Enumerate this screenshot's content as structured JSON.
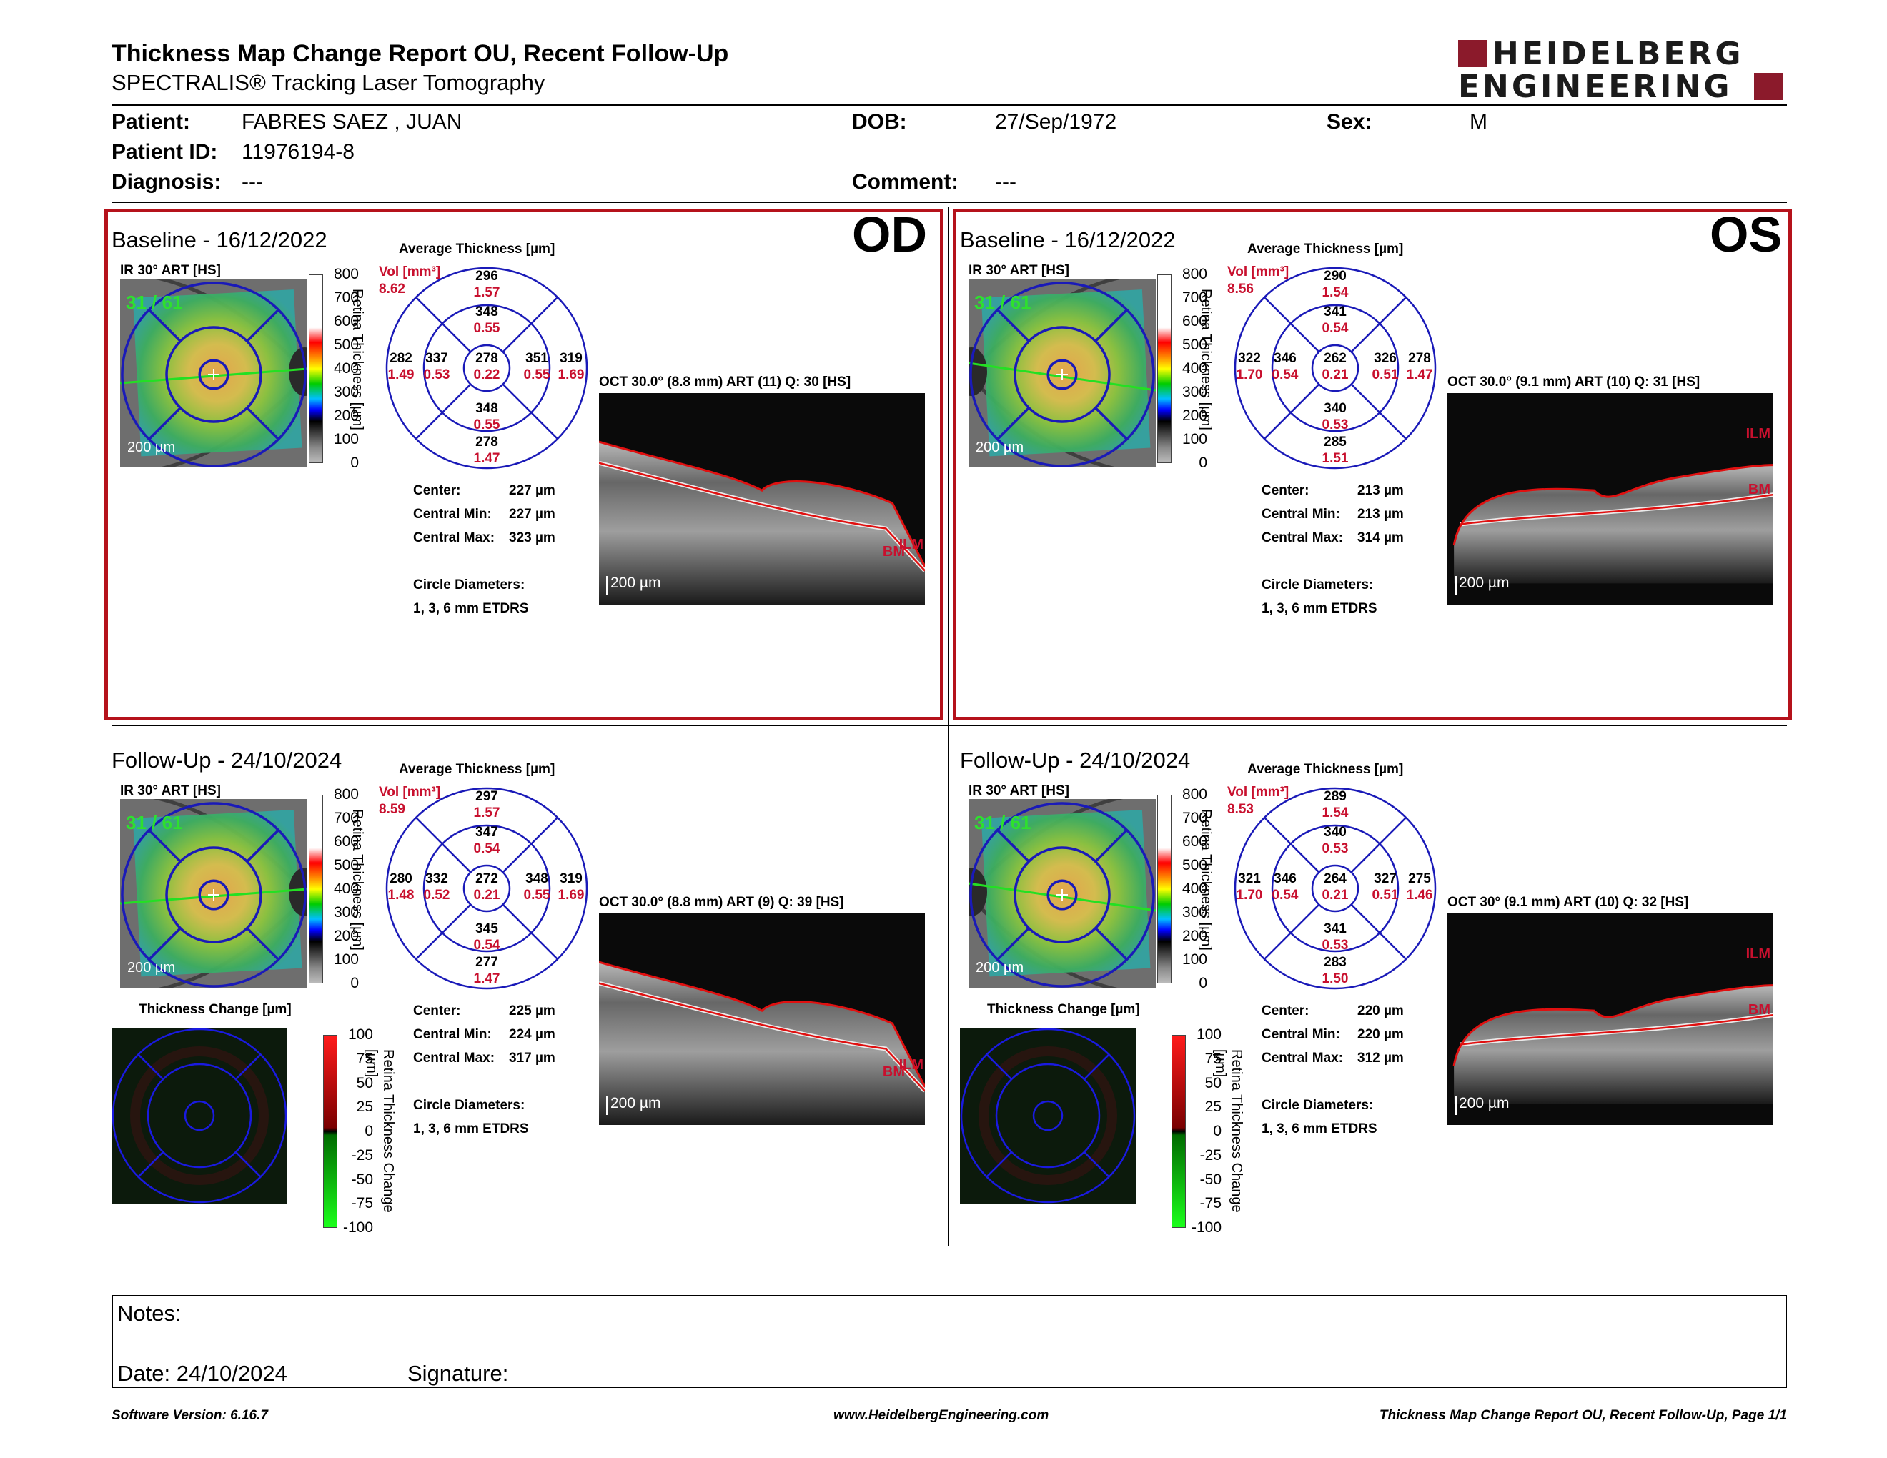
{
  "header": {
    "title": "Thickness Map Change Report OU, Recent Follow-Up",
    "subtitle": "SPECTRALIS® Tracking Laser Tomography",
    "logo_line1": "HEIDELBERG",
    "logo_line2": "ENGINEERING"
  },
  "patient": {
    "patient_label": "Patient:",
    "patient_value": "FABRES SAEZ , JUAN",
    "id_label": "Patient ID:",
    "id_value": "11976194-8",
    "diagnosis_label": "Diagnosis:",
    "diagnosis_value": "---",
    "dob_label": "DOB:",
    "dob_value": "27/Sep/1972",
    "comment_label": "Comment:",
    "comment_value": "---",
    "sex_label": "Sex:",
    "sex_value": "M"
  },
  "labels": {
    "avg_thickness": "Average Thickness [µm]",
    "ir": "IR 30° ART [HS]",
    "vol": "Vol [mm³]",
    "center": "Center:",
    "central_min": "Central Min:",
    "central_max": "Central Max:",
    "circle_diam": "Circle Diameters:",
    "circle_val": "1, 3, 6 mm ETDRS",
    "scale_bar": "200 µm",
    "retina_thickness": "Retina Thickness [µm]",
    "thickness_change": "Thickness Change [µm]",
    "retina_thickness_change": "Retina Thickness Change [µm]",
    "ilm": "ILM",
    "bm": "BM",
    "fixation": "31 / 61"
  },
  "scale_thickness": [
    "800",
    "700",
    "600",
    "500",
    "400",
    "300",
    "200",
    "100",
    "0"
  ],
  "scale_change": [
    "100",
    "75",
    "50",
    "25",
    "0",
    "-25",
    "-50",
    "-75",
    "-100"
  ],
  "panels": {
    "od_base": {
      "title": "Baseline - 16/12/2022",
      "eye": "OD",
      "oct": "OCT 30.0° (8.8 mm) ART (11) Q: 30 [HS]",
      "vol_total": "8.62",
      "grid": {
        "top_out": [
          "296",
          "1.57"
        ],
        "top_in": [
          "348",
          "0.55"
        ],
        "left_out": [
          "282",
          "1.49"
        ],
        "left_in": [
          "337",
          "0.53"
        ],
        "center": [
          "278",
          "0.22"
        ],
        "right_in": [
          "351",
          "0.55"
        ],
        "right_out": [
          "319",
          "1.69"
        ],
        "bot_in": [
          "348",
          "0.55"
        ],
        "bot_out": [
          "278",
          "1.47"
        ]
      },
      "center_val": "227 µm",
      "min_val": "227 µm",
      "max_val": "323 µm"
    },
    "os_base": {
      "title": "Baseline - 16/12/2022",
      "eye": "OS",
      "oct": "OCT 30.0° (9.1 mm) ART (10) Q: 31 [HS]",
      "vol_total": "8.56",
      "grid": {
        "top_out": [
          "290",
          "1.54"
        ],
        "top_in": [
          "341",
          "0.54"
        ],
        "left_out": [
          "322",
          "1.70"
        ],
        "left_in": [
          "346",
          "0.54"
        ],
        "center": [
          "262",
          "0.21"
        ],
        "right_in": [
          "326",
          "0.51"
        ],
        "right_out": [
          "278",
          "1.47"
        ],
        "bot_in": [
          "340",
          "0.53"
        ],
        "bot_out": [
          "285",
          "1.51"
        ]
      },
      "center_val": "213 µm",
      "min_val": "213 µm",
      "max_val": "314 µm"
    },
    "od_fu": {
      "title": "Follow-Up - 24/10/2024",
      "oct": "OCT 30.0° (8.8 mm) ART (9) Q: 39 [HS]",
      "vol_total": "8.59",
      "grid": {
        "top_out": [
          "297",
          "1.57"
        ],
        "top_in": [
          "347",
          "0.54"
        ],
        "left_out": [
          "280",
          "1.48"
        ],
        "left_in": [
          "332",
          "0.52"
        ],
        "center": [
          "272",
          "0.21"
        ],
        "right_in": [
          "348",
          "0.55"
        ],
        "right_out": [
          "319",
          "1.69"
        ],
        "bot_in": [
          "345",
          "0.54"
        ],
        "bot_out": [
          "277",
          "1.47"
        ]
      },
      "center_val": "225 µm",
      "min_val": "224 µm",
      "max_val": "317 µm"
    },
    "os_fu": {
      "title": "Follow-Up - 24/10/2024",
      "oct": "OCT 30° (9.1 mm) ART (10) Q: 32 [HS]",
      "vol_total": "8.53",
      "grid": {
        "top_out": [
          "289",
          "1.54"
        ],
        "top_in": [
          "340",
          "0.53"
        ],
        "left_out": [
          "321",
          "1.70"
        ],
        "left_in": [
          "346",
          "0.54"
        ],
        "center": [
          "264",
          "0.21"
        ],
        "right_in": [
          "327",
          "0.51"
        ],
        "right_out": [
          "275",
          "1.46"
        ],
        "bot_in": [
          "341",
          "0.53"
        ],
        "bot_out": [
          "283",
          "1.50"
        ]
      },
      "center_val": "220 µm",
      "min_val": "220 µm",
      "max_val": "312 µm"
    }
  },
  "notes": {
    "notes_label": "Notes:",
    "date_label": "Date: 24/10/2024",
    "signature_label": "Signature:"
  },
  "footer": {
    "software": "Software Version: 6.16.7",
    "website": "www.HeidelbergEngineering.com",
    "page": "Thickness Map Change Report OU, Recent Follow-Up, Page 1/1"
  },
  "colors": {
    "frame_red": "#b5121b",
    "value_red": "#c8102e",
    "grid_blue": "#1a1ab8",
    "logo_red": "#8b1a2b"
  }
}
